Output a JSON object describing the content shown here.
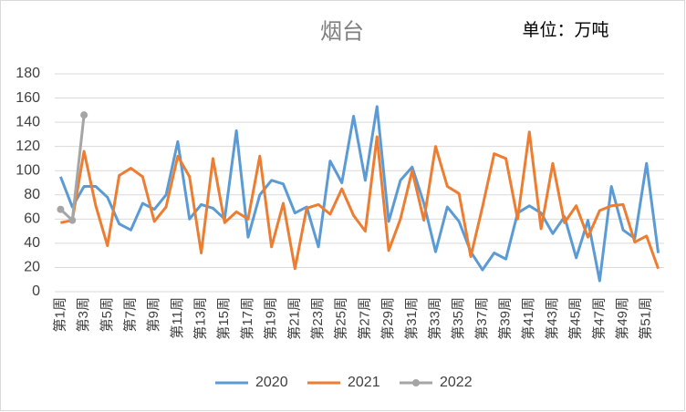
{
  "chart_data": {
    "type": "line",
    "title": "烟台",
    "annotation": "单位：万吨",
    "categories": [
      "第1周",
      null,
      "第3周",
      null,
      "第5周",
      null,
      "第7周",
      null,
      "第9周",
      null,
      "第11周",
      null,
      "第13周",
      null,
      "第15周",
      null,
      "第17周",
      null,
      "第19周",
      null,
      "第21周",
      null,
      "第23周",
      null,
      "第25周",
      null,
      "第27周",
      null,
      "第29周",
      null,
      "第31周",
      null,
      "第33周",
      null,
      "第35周",
      null,
      "第37周",
      null,
      "第39周",
      null,
      "第41周",
      null,
      "第43周",
      null,
      "第45周",
      null,
      "第47周",
      null,
      "第49周",
      null,
      "第51周",
      null
    ],
    "series": [
      {
        "name": "2020",
        "color": "#5b9bd5",
        "marker": false,
        "values": [
          95,
          70,
          87,
          87,
          78,
          56,
          51,
          73,
          68,
          80,
          124,
          60,
          72,
          69,
          60,
          133,
          45,
          80,
          92,
          89,
          65,
          70,
          37,
          108,
          90,
          145,
          92,
          153,
          58,
          92,
          103,
          73,
          33,
          70,
          58,
          33,
          18,
          32,
          27,
          65,
          71,
          65,
          48,
          62,
          28,
          59,
          9,
          87,
          51,
          44,
          106,
          32
        ]
      },
      {
        "name": "2021",
        "color": "#ed7d31",
        "marker": false,
        "values": [
          57,
          59,
          116,
          71,
          38,
          96,
          102,
          95,
          58,
          70,
          112,
          95,
          32,
          110,
          57,
          66,
          60,
          112,
          37,
          73,
          19,
          69,
          72,
          64,
          85,
          63,
          50,
          128,
          34,
          60,
          100,
          59,
          120,
          87,
          81,
          29,
          70,
          114,
          110,
          60,
          132,
          52,
          106,
          57,
          71,
          45,
          67,
          71,
          72,
          41,
          46,
          19
        ]
      },
      {
        "name": "2022",
        "color": "#a5a5a5",
        "marker": true,
        "values": [
          68,
          59,
          146,
          null,
          null,
          null,
          null,
          null,
          null,
          null,
          null,
          null,
          null,
          null,
          null,
          null,
          null,
          null,
          null,
          null,
          null,
          null,
          null,
          null,
          null,
          null,
          null,
          null,
          null,
          null,
          null,
          null,
          null,
          null,
          null,
          null,
          null,
          null,
          null,
          null,
          null,
          null,
          null,
          null,
          null,
          null,
          null,
          null,
          null,
          null,
          null,
          null
        ]
      }
    ],
    "ylim": [
      0,
      180
    ],
    "yticks": [
      0,
      20,
      40,
      60,
      80,
      100,
      120,
      140,
      160,
      180
    ],
    "grid": true,
    "legend": "bottom"
  }
}
